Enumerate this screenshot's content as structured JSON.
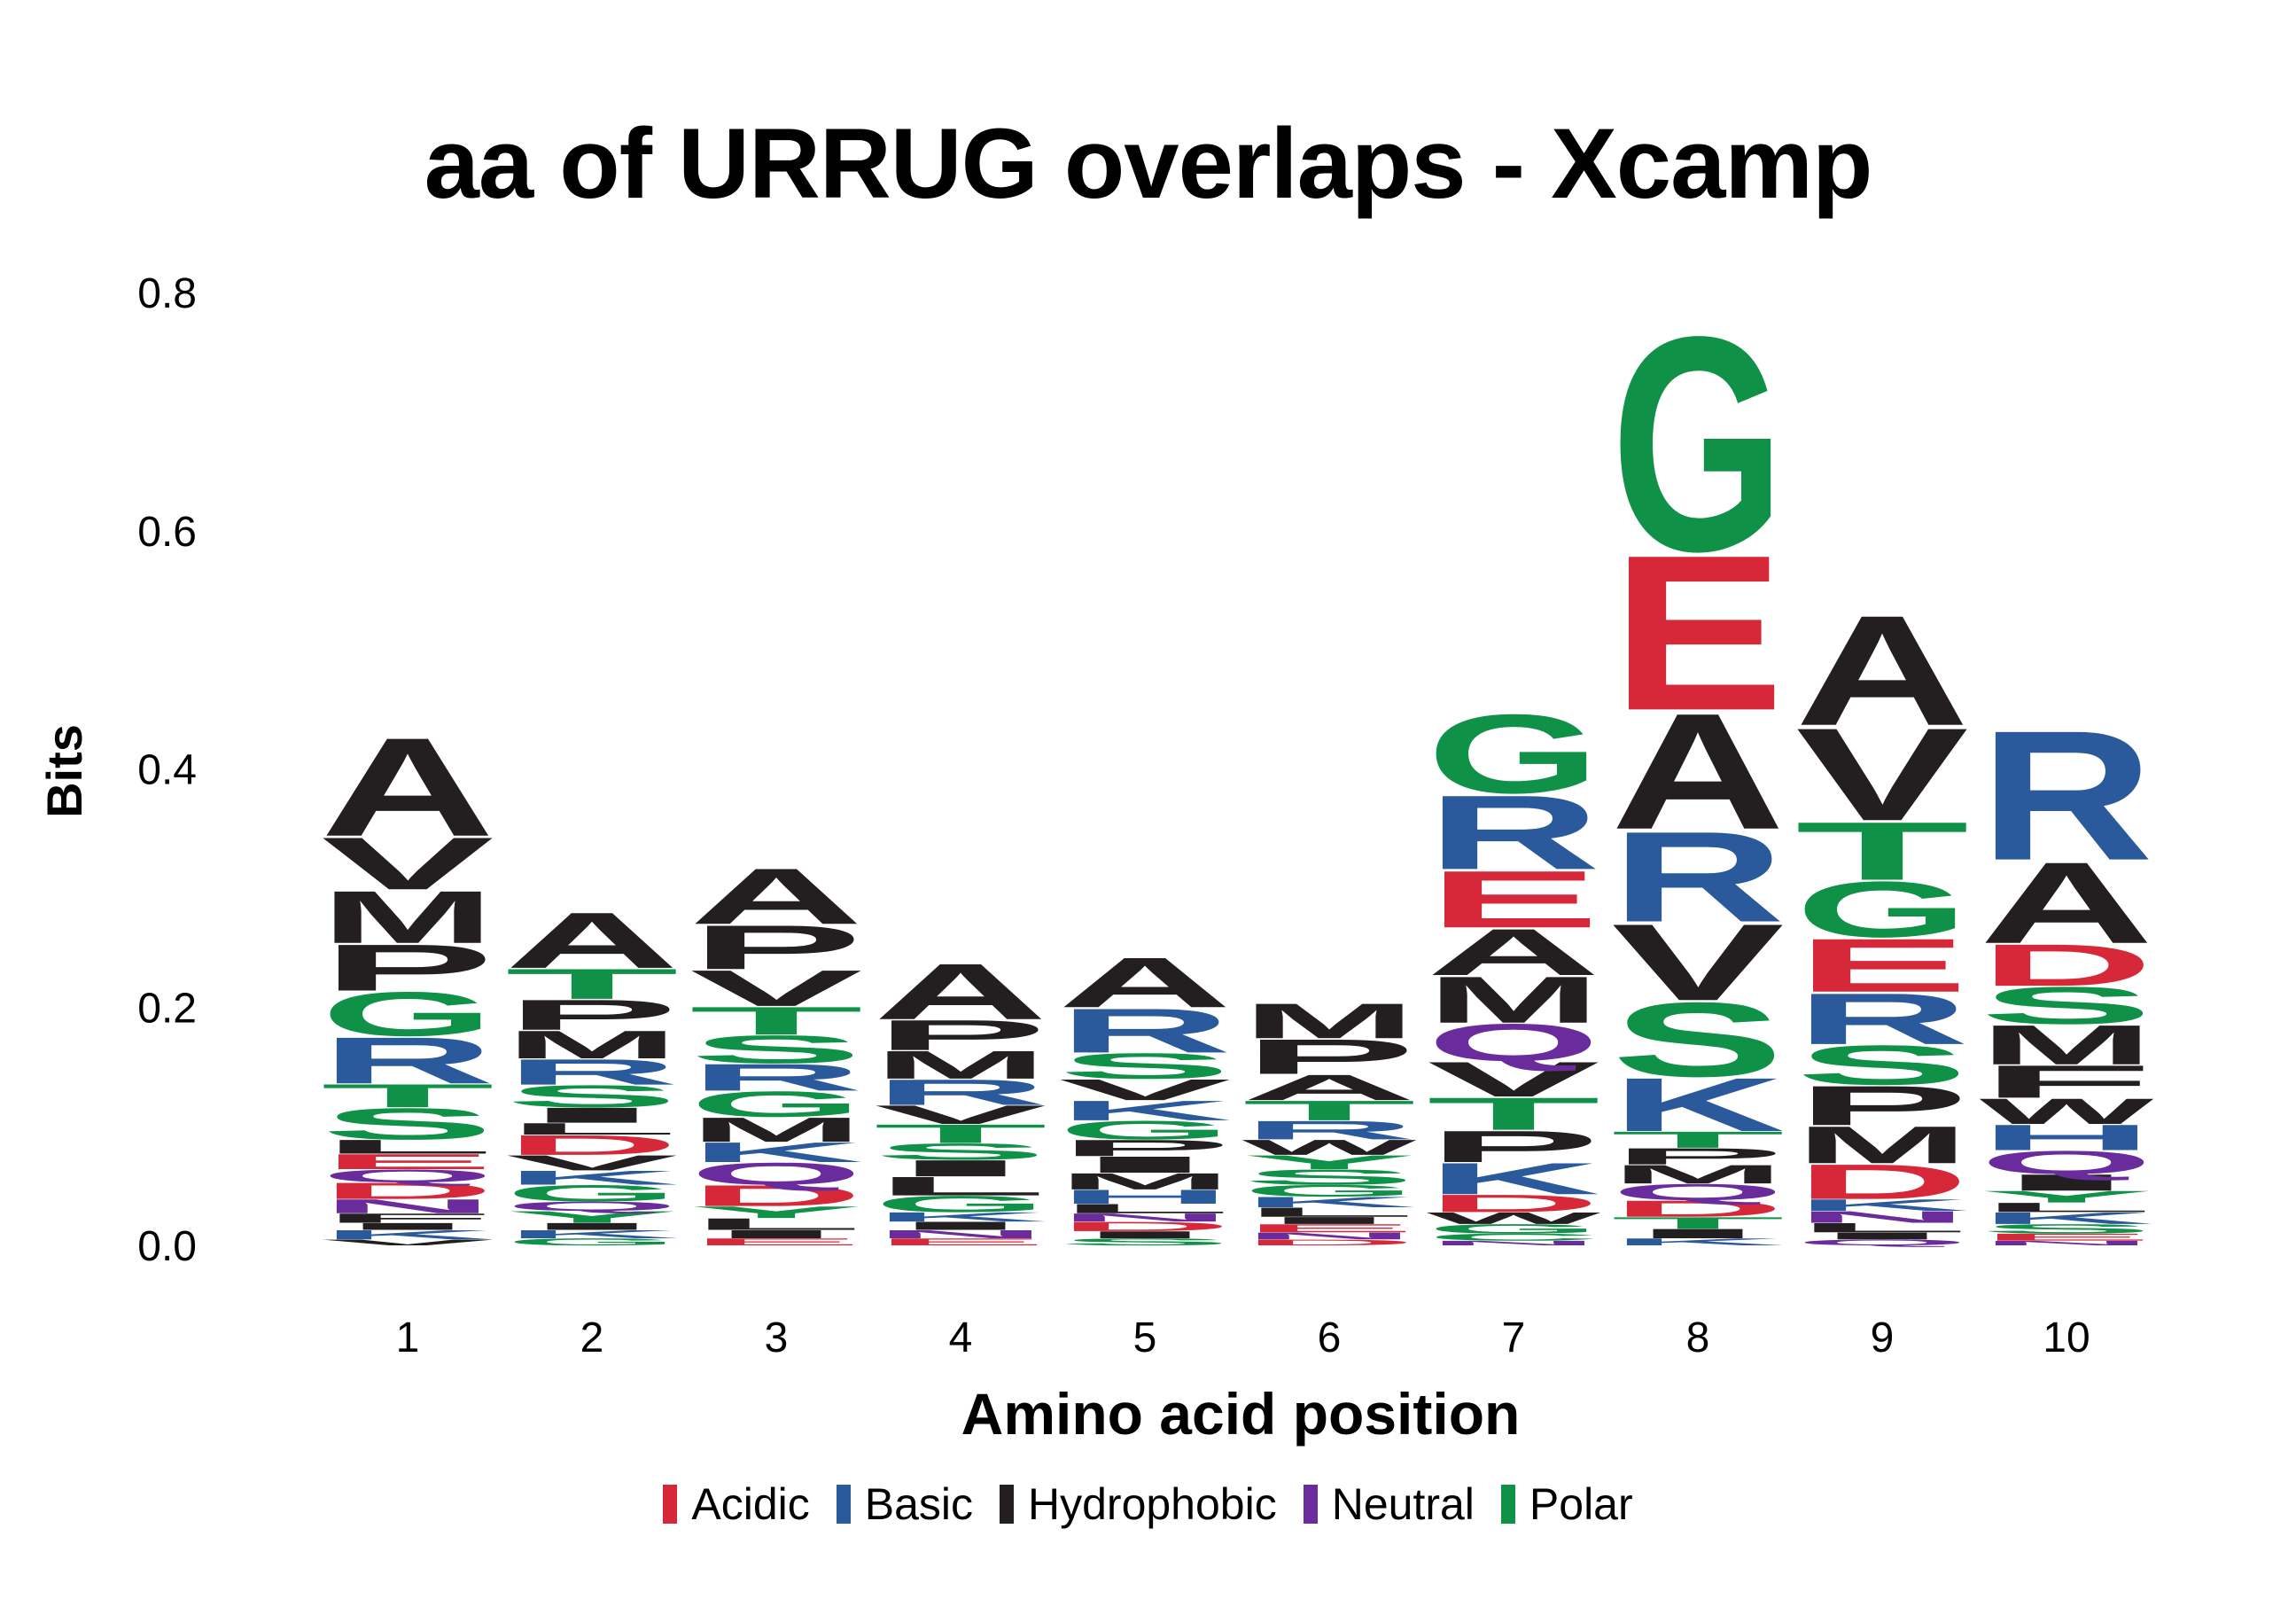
{
  "chart_data": {
    "type": "sequence-logo",
    "title": "aa of URRUG overlaps - Xcamp",
    "xlabel": "Amino acid position",
    "ylabel": "Bits",
    "ylim": [
      0,
      0.8
    ],
    "yticks": [
      "0.0",
      "0.2",
      "0.4",
      "0.6",
      "0.8"
    ],
    "ytick_values": [
      0,
      0.2,
      0.4,
      0.6,
      0.8
    ],
    "categories": [
      "1",
      "2",
      "3",
      "4",
      "5",
      "6",
      "7",
      "8",
      "9",
      "10"
    ],
    "legend_position": "bottom",
    "legend": [
      {
        "label": "Acidic",
        "color": "#d62839"
      },
      {
        "label": "Basic",
        "color": "#2a5a9b"
      },
      {
        "label": "Hydrophobic",
        "color": "#231f20"
      },
      {
        "label": "Neutral",
        "color": "#6a2c9c"
      },
      {
        "label": "Polar",
        "color": "#109148"
      }
    ],
    "group_colors": {
      "Acidic": "#d62839",
      "Basic": "#2a5a9b",
      "Hydrophobic": "#231f20",
      "Neutral": "#6a2c9c",
      "Polar": "#109148"
    },
    "residue_groups": {
      "D": "Acidic",
      "E": "Acidic",
      "H": "Basic",
      "K": "Basic",
      "R": "Basic",
      "A": "Hydrophobic",
      "F": "Hydrophobic",
      "I": "Hydrophobic",
      "L": "Hydrophobic",
      "M": "Hydrophobic",
      "P": "Hydrophobic",
      "V": "Hydrophobic",
      "W": "Hydrophobic",
      "N": "Neutral",
      "Q": "Neutral",
      "C": "Polar",
      "G": "Polar",
      "S": "Polar",
      "T": "Polar",
      "Y": "Polar"
    },
    "positions": [
      {
        "pos": "1",
        "letters": [
          {
            "aa": "V",
            "h": 0.005
          },
          {
            "aa": "K",
            "h": 0.008
          },
          {
            "aa": "I",
            "h": 0.006
          },
          {
            "aa": "F",
            "h": 0.008
          },
          {
            "aa": "N",
            "h": 0.012
          },
          {
            "aa": "D",
            "h": 0.014
          },
          {
            "aa": "Q",
            "h": 0.011
          },
          {
            "aa": "E",
            "h": 0.013
          },
          {
            "aa": "L",
            "h": 0.012
          },
          {
            "aa": "S",
            "h": 0.027
          },
          {
            "aa": "T",
            "h": 0.02
          },
          {
            "aa": "R",
            "h": 0.04
          },
          {
            "aa": "G",
            "h": 0.038
          },
          {
            "aa": "P",
            "h": 0.04
          },
          {
            "aa": "M",
            "h": 0.045
          },
          {
            "aa": "V",
            "h": 0.045
          },
          {
            "aa": "A",
            "h": 0.085
          }
        ]
      },
      {
        "pos": "2",
        "letters": [
          {
            "aa": "G",
            "h": 0.006
          },
          {
            "aa": "K",
            "h": 0.007
          },
          {
            "aa": "I",
            "h": 0.006
          },
          {
            "aa": "Y",
            "h": 0.01
          },
          {
            "aa": "Q",
            "h": 0.008
          },
          {
            "aa": "G",
            "h": 0.014
          },
          {
            "aa": "K",
            "h": 0.012
          },
          {
            "aa": "V",
            "h": 0.013
          },
          {
            "aa": "D",
            "h": 0.017
          },
          {
            "aa": "L",
            "h": 0.01
          },
          {
            "aa": "I",
            "h": 0.013
          },
          {
            "aa": "S",
            "h": 0.019
          },
          {
            "aa": "R",
            "h": 0.022
          },
          {
            "aa": "M",
            "h": 0.024
          },
          {
            "aa": "P",
            "h": 0.026
          },
          {
            "aa": "T",
            "h": 0.026
          },
          {
            "aa": "A",
            "h": 0.048
          }
        ]
      },
      {
        "pos": "3",
        "letters": [
          {
            "aa": "E",
            "h": 0.006
          },
          {
            "aa": "I",
            "h": 0.007
          },
          {
            "aa": "L",
            "h": 0.01
          },
          {
            "aa": "Y",
            "h": 0.01
          },
          {
            "aa": "D",
            "h": 0.018
          },
          {
            "aa": "Q",
            "h": 0.019
          },
          {
            "aa": "K",
            "h": 0.017
          },
          {
            "aa": "M",
            "h": 0.021
          },
          {
            "aa": "G",
            "h": 0.022
          },
          {
            "aa": "R",
            "h": 0.023
          },
          {
            "aa": "S",
            "h": 0.024
          },
          {
            "aa": "T",
            "h": 0.024
          },
          {
            "aa": "V",
            "h": 0.031
          },
          {
            "aa": "P",
            "h": 0.038
          },
          {
            "aa": "A",
            "h": 0.048
          }
        ]
      },
      {
        "pos": "4",
        "letters": [
          {
            "aa": "E",
            "h": 0.006
          },
          {
            "aa": "N",
            "h": 0.007
          },
          {
            "aa": "I",
            "h": 0.007
          },
          {
            "aa": "K",
            "h": 0.008
          },
          {
            "aa": "G",
            "h": 0.014
          },
          {
            "aa": "L",
            "h": 0.016
          },
          {
            "aa": "I",
            "h": 0.014
          },
          {
            "aa": "S",
            "h": 0.014
          },
          {
            "aa": "T",
            "h": 0.016
          },
          {
            "aa": "V",
            "h": 0.016
          },
          {
            "aa": "R",
            "h": 0.022
          },
          {
            "aa": "M",
            "h": 0.024
          },
          {
            "aa": "P",
            "h": 0.026
          },
          {
            "aa": "A",
            "h": 0.048
          }
        ]
      },
      {
        "pos": "5",
        "letters": [
          {
            "aa": "S",
            "h": 0.006
          },
          {
            "aa": "I",
            "h": 0.006
          },
          {
            "aa": "D",
            "h": 0.008
          },
          {
            "aa": "N",
            "h": 0.007
          },
          {
            "aa": "L",
            "h": 0.008
          },
          {
            "aa": "H",
            "h": 0.012
          },
          {
            "aa": "M",
            "h": 0.014
          },
          {
            "aa": "I",
            "h": 0.014
          },
          {
            "aa": "P",
            "h": 0.014
          },
          {
            "aa": "G",
            "h": 0.016
          },
          {
            "aa": "K",
            "h": 0.017
          },
          {
            "aa": "V",
            "h": 0.018
          },
          {
            "aa": "S",
            "h": 0.022
          },
          {
            "aa": "R",
            "h": 0.038
          },
          {
            "aa": "A",
            "h": 0.043
          }
        ]
      },
      {
        "pos": "6",
        "letters": [
          {
            "aa": "D",
            "h": 0.005
          },
          {
            "aa": "N",
            "h": 0.006
          },
          {
            "aa": "E",
            "h": 0.007
          },
          {
            "aa": "I",
            "h": 0.006
          },
          {
            "aa": "L",
            "h": 0.008
          },
          {
            "aa": "K",
            "h": 0.009
          },
          {
            "aa": "G",
            "h": 0.01
          },
          {
            "aa": "S",
            "h": 0.013
          },
          {
            "aa": "Y",
            "h": 0.012
          },
          {
            "aa": "W",
            "h": 0.013
          },
          {
            "aa": "R",
            "h": 0.016
          },
          {
            "aa": "T",
            "h": 0.017
          },
          {
            "aa": "A",
            "h": 0.022
          },
          {
            "aa": "P",
            "h": 0.03
          },
          {
            "aa": "M",
            "h": 0.03
          }
        ]
      },
      {
        "pos": "7",
        "letters": [
          {
            "aa": "N",
            "h": 0.004
          },
          {
            "aa": "C",
            "h": 0.006
          },
          {
            "aa": "G",
            "h": 0.008
          },
          {
            "aa": "W",
            "h": 0.01
          },
          {
            "aa": "D",
            "h": 0.015
          },
          {
            "aa": "K",
            "h": 0.027
          },
          {
            "aa": "P",
            "h": 0.027
          },
          {
            "aa": "T",
            "h": 0.028
          },
          {
            "aa": "V",
            "h": 0.03
          },
          {
            "aa": "Q",
            "h": 0.032
          },
          {
            "aa": "M",
            "h": 0.04
          },
          {
            "aa": "A",
            "h": 0.04
          },
          {
            "aa": "E",
            "h": 0.049
          },
          {
            "aa": "R",
            "h": 0.064
          },
          {
            "aa": "G",
            "h": 0.068
          }
        ]
      },
      {
        "pos": "8",
        "letters": [
          {
            "aa": "K",
            "h": 0.006
          },
          {
            "aa": "I",
            "h": 0.008
          },
          {
            "aa": "T",
            "h": 0.01
          },
          {
            "aa": "D",
            "h": 0.014
          },
          {
            "aa": "Q",
            "h": 0.014
          },
          {
            "aa": "M",
            "h": 0.016
          },
          {
            "aa": "P",
            "h": 0.014
          },
          {
            "aa": "T",
            "h": 0.014
          },
          {
            "aa": "K",
            "h": 0.046
          },
          {
            "aa": "S",
            "h": 0.064
          },
          {
            "aa": "V",
            "h": 0.066
          },
          {
            "aa": "R",
            "h": 0.078
          },
          {
            "aa": "A",
            "h": 0.1
          },
          {
            "aa": "E",
            "h": 0.134
          },
          {
            "aa": "G",
            "h": 0.185
          }
        ]
      },
      {
        "pos": "9",
        "letters": [
          {
            "aa": "Q",
            "h": 0.005
          },
          {
            "aa": "I",
            "h": 0.006
          },
          {
            "aa": "L",
            "h": 0.008
          },
          {
            "aa": "N",
            "h": 0.01
          },
          {
            "aa": "K",
            "h": 0.01
          },
          {
            "aa": "D",
            "h": 0.03
          },
          {
            "aa": "M",
            "h": 0.032
          },
          {
            "aa": "P",
            "h": 0.034
          },
          {
            "aa": "S",
            "h": 0.034
          },
          {
            "aa": "R",
            "h": 0.044
          },
          {
            "aa": "E",
            "h": 0.046
          },
          {
            "aa": "G",
            "h": 0.048
          },
          {
            "aa": "T",
            "h": 0.05
          },
          {
            "aa": "V",
            "h": 0.08
          },
          {
            "aa": "A",
            "h": 0.095
          }
        ]
      },
      {
        "pos": "10",
        "letters": [
          {
            "aa": "N",
            "h": 0.004
          },
          {
            "aa": "E",
            "h": 0.006
          },
          {
            "aa": "S",
            "h": 0.008
          },
          {
            "aa": "K",
            "h": 0.01
          },
          {
            "aa": "L",
            "h": 0.008
          },
          {
            "aa": "Y",
            "h": 0.01
          },
          {
            "aa": "I",
            "h": 0.014
          },
          {
            "aa": "Q",
            "h": 0.02
          },
          {
            "aa": "H",
            "h": 0.022
          },
          {
            "aa": "W",
            "h": 0.022
          },
          {
            "aa": "F",
            "h": 0.028
          },
          {
            "aa": "M",
            "h": 0.034
          },
          {
            "aa": "S",
            "h": 0.032
          },
          {
            "aa": "D",
            "h": 0.036
          },
          {
            "aa": "A",
            "h": 0.07
          },
          {
            "aa": "R",
            "h": 0.112
          }
        ]
      }
    ]
  }
}
